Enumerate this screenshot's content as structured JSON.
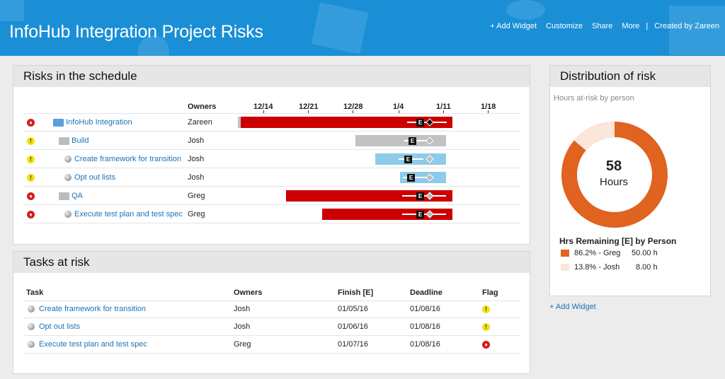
{
  "header": {
    "title": "InfoHub Integration Project Risks",
    "menu": {
      "add_widget": "+ Add Widget",
      "customize": "Customize",
      "share": "Share",
      "more": "More",
      "separator": "|",
      "created_by": "Created by Zareen"
    }
  },
  "schedule": {
    "title": "Risks in the schedule",
    "owners_header": "Owners",
    "timeline_ticks": [
      "12/14",
      "12/21",
      "12/28",
      "1/4",
      "1/11",
      "1/18"
    ],
    "estimate_marker": "E",
    "rows": [
      {
        "name": "InfoHub Integration",
        "owner": "Zareen",
        "flag": "red",
        "flag_symbol": "♦",
        "icon": "folder-blue"
      },
      {
        "name": "Build",
        "owner": "Josh",
        "flag": "yellow",
        "flag_symbol": "!",
        "icon": "folder-gray"
      },
      {
        "name": "Create framework for transition",
        "owner": "Josh",
        "flag": "yellow",
        "flag_symbol": "!",
        "icon": "task-ball"
      },
      {
        "name": "Opt out lists",
        "owner": "Josh",
        "flag": "yellow",
        "flag_symbol": "!",
        "icon": "task-ball"
      },
      {
        "name": "QA",
        "owner": "Greg",
        "flag": "red",
        "flag_symbol": "♦",
        "icon": "folder-gray"
      },
      {
        "name": "Execute test plan and test spec",
        "owner": "Greg",
        "flag": "red",
        "flag_symbol": "♦",
        "icon": "task-ball"
      }
    ]
  },
  "tasks": {
    "title": "Tasks at risk",
    "columns": [
      "Task",
      "Owners",
      "Finish [E]",
      "Deadline",
      "Flag"
    ],
    "rows": [
      {
        "task": "Create framework for transition",
        "owner": "Josh",
        "finish": "01/05/16",
        "deadline": "01/08/16",
        "flag": "yellow",
        "flag_symbol": "!"
      },
      {
        "task": "Opt out lists",
        "owner": "Josh",
        "finish": "01/06/16",
        "deadline": "01/08/16",
        "flag": "yellow",
        "flag_symbol": "!"
      },
      {
        "task": "Execute test plan and test spec",
        "owner": "Greg",
        "finish": "01/07/16",
        "deadline": "01/08/16",
        "flag": "red",
        "flag_symbol": "♦"
      }
    ]
  },
  "distribution": {
    "title": "Distribution of risk",
    "subtitle": "Hours at-risk by person",
    "center_value": "58",
    "center_unit": "Hours",
    "legend_title": "Hrs Remaining [E] by Person",
    "legend": [
      {
        "label": "86.2% - Greg",
        "value": "50.00 h",
        "color": "#e0631f"
      },
      {
        "label": "13.8% - Josh",
        "value": "8.00 h",
        "color": "#fbe6dc"
      }
    ]
  },
  "sidebar": {
    "add_widget": "+ Add Widget"
  },
  "colors": {
    "header": "#1a8fd6",
    "link": "#1a73b8",
    "bar_red": "#cc0000",
    "bar_gray": "#c2c2c2",
    "bar_blue": "#8ecae9"
  }
}
